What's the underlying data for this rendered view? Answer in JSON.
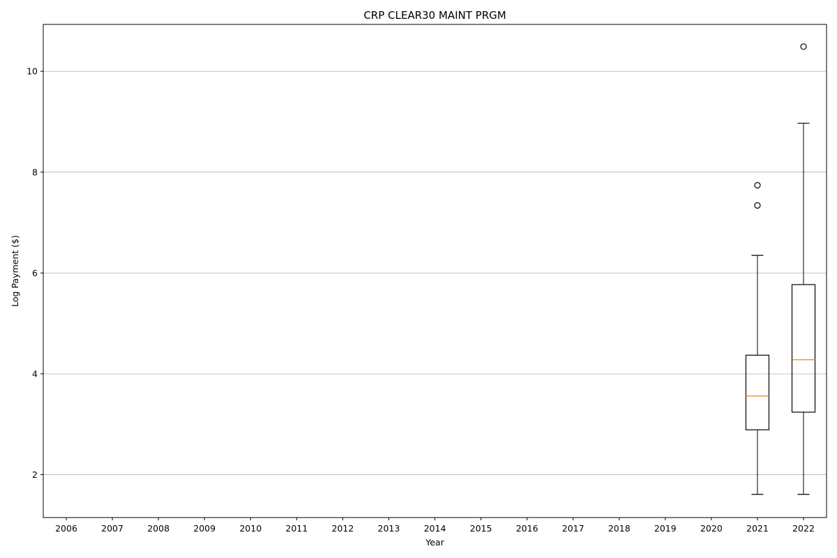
{
  "chart_data": {
    "type": "box",
    "title": "CRP CLEAR30 MAINT PRGM",
    "xlabel": "Year",
    "ylabel": "Log Payment ($)",
    "categories": [
      "2006",
      "2007",
      "2008",
      "2009",
      "2010",
      "2011",
      "2012",
      "2013",
      "2014",
      "2015",
      "2016",
      "2017",
      "2018",
      "2019",
      "2020",
      "2021",
      "2022"
    ],
    "ylim": [
      1.15,
      10.93
    ],
    "yticks": [
      2,
      4,
      6,
      8,
      10
    ],
    "grid": "y",
    "boxes": [
      {
        "category": "2021",
        "whisker_low": 1.61,
        "q1": 2.89,
        "median": 3.56,
        "q3": 4.37,
        "whisker_high": 6.35,
        "outliers": [
          7.34,
          7.74
        ]
      },
      {
        "category": "2022",
        "whisker_low": 1.61,
        "q1": 3.24,
        "median": 4.28,
        "q3": 5.77,
        "whisker_high": 8.97,
        "outliers": [
          10.49
        ]
      }
    ],
    "colors": {
      "box": "#000000",
      "median": "#ff7f0e",
      "grid": "#b0b0b0"
    }
  }
}
